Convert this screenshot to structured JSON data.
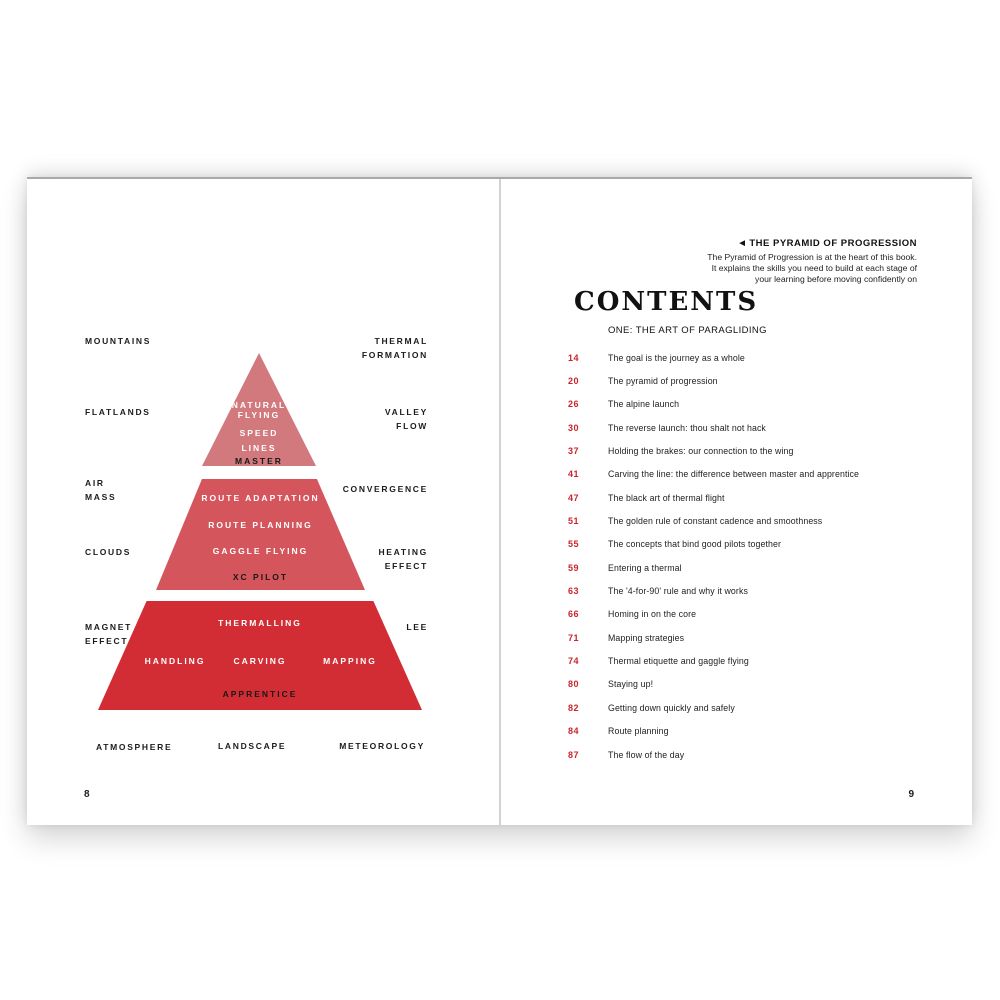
{
  "book": {
    "left_page_number": "8",
    "right_page_number": "9"
  },
  "pyramid": {
    "left_labels": [
      "MOUNTAINS",
      "FLATLANDS",
      "AIR\nMASS",
      "CLOUDS",
      "MAGNET\nEFFECT"
    ],
    "right_labels": [
      "THERMAL\nFORMATION",
      "VALLEY\nFLOW",
      "CONVERGENCE",
      "HEATING\nEFFECT",
      "LEE"
    ],
    "bottom_labels": [
      "ATMOSPHERE",
      "LANDSCAPE",
      "METEOROLOGY"
    ],
    "tiers": [
      {
        "rank": "MASTER",
        "lines": [
          "NATURAL",
          "FLYING",
          "SPEED",
          "LINES"
        ],
        "color": "#d2797d"
      },
      {
        "rank": "XC PILOT",
        "lines": [
          "ROUTE ADAPTATION",
          "ROUTE PLANNING",
          "GAGGLE FLYING"
        ],
        "color": "#d4565c"
      },
      {
        "rank": "APPRENTICE",
        "top_line": "THERMALLING",
        "row": [
          "HANDLING",
          "CARVING",
          "MAPPING"
        ],
        "color": "#d22c35"
      }
    ]
  },
  "contents": {
    "sidenote_arrow": "◀",
    "sidenote_title": "THE PYRAMID OF PROGRESSION",
    "sidenote_body": "The Pyramid of Progression is at the heart of this book.\nIt explains the skills you need to build at each stage of\nyour learning before moving confidently on",
    "title": "CONTENTS",
    "section_heading": "ONE: THE ART OF PARAGLIDING",
    "entries": [
      {
        "page": "14",
        "title": "The goal is the journey as a whole"
      },
      {
        "page": "20",
        "title": "The pyramid of progression"
      },
      {
        "page": "26",
        "title": "The alpine launch"
      },
      {
        "page": "30",
        "title": "The reverse launch: thou shalt not hack"
      },
      {
        "page": "37",
        "title": "Holding the brakes: our connection to the wing"
      },
      {
        "page": "41",
        "title": "Carving the line: the difference between master and apprentice"
      },
      {
        "page": "47",
        "title": "The black art of thermal flight"
      },
      {
        "page": "51",
        "title": "The golden rule of constant cadence and smoothness"
      },
      {
        "page": "55",
        "title": "The concepts that bind good pilots together"
      },
      {
        "page": "59",
        "title": "Entering a thermal"
      },
      {
        "page": "63",
        "title": "The '4-for-90' rule and why it works"
      },
      {
        "page": "66",
        "title": "Homing in on the core"
      },
      {
        "page": "71",
        "title": "Mapping strategies"
      },
      {
        "page": "74",
        "title": "Thermal etiquette and gaggle flying"
      },
      {
        "page": "80",
        "title": "Staying up!"
      },
      {
        "page": "82",
        "title": "Getting down quickly and safely"
      },
      {
        "page": "84",
        "title": "Route planning"
      },
      {
        "page": "87",
        "title": "The flow of the day"
      }
    ]
  },
  "colors": {
    "accent_red": "#c9242b",
    "tier_top": "#d2797d",
    "tier_middle": "#d4565c",
    "tier_bottom": "#d22c35",
    "text": "#1c1c1c",
    "gutter_line": "#d2d2d2"
  }
}
